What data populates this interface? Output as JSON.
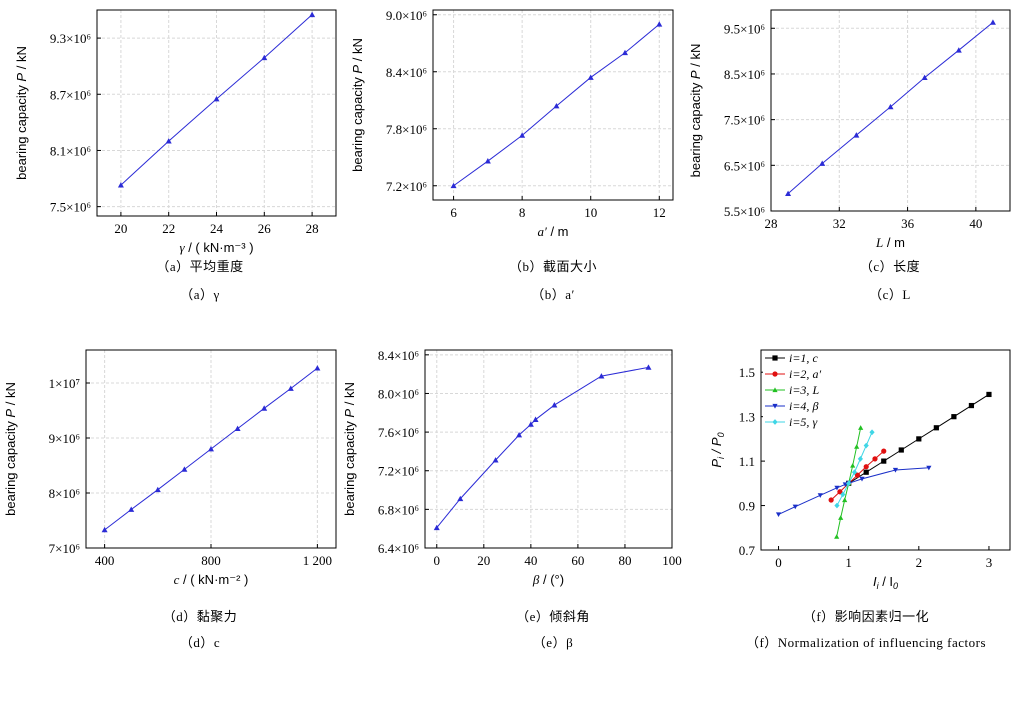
{
  "chart_data": [
    {
      "id": "a",
      "type": "line",
      "caption_cn": "（a）平均重度",
      "caption_en": "（a）γ",
      "xlabel": "γ / ( kN·m⁻³ )",
      "ylabel": "bearing capacity P / kN",
      "xlim": [
        19,
        29
      ],
      "ylim": [
        7.4,
        9.6
      ],
      "xticks": [
        20,
        22,
        24,
        26,
        28
      ],
      "xtick_labels": [
        "20",
        "22",
        "24",
        "26",
        "28"
      ],
      "yticks": [
        7.5,
        8.1,
        8.7,
        9.3
      ],
      "ytick_labels": [
        "7.5×10⁶",
        "8.1×10⁶",
        "8.7×10⁶",
        "9.3×10⁶"
      ],
      "grid": true,
      "color": "#2b2bd6",
      "marker": "triangle-up",
      "series": [
        {
          "x": [
            20,
            22,
            24,
            26,
            28
          ],
          "y": [
            7.73,
            8.2,
            8.65,
            9.09,
            9.55
          ]
        }
      ]
    },
    {
      "id": "b",
      "type": "line",
      "caption_cn": "（b）截面大小",
      "caption_en": "（b）a′",
      "xlabel": "a′ / m",
      "ylabel": "bearing capacity P / kN",
      "xlim": [
        5.4,
        12.4
      ],
      "ylim": [
        7.05,
        9.05
      ],
      "xticks": [
        6,
        8,
        10,
        12
      ],
      "xtick_labels": [
        "6",
        "8",
        "10",
        "12"
      ],
      "yticks": [
        7.2,
        7.8,
        8.4,
        9.0
      ],
      "ytick_labels": [
        "7.2×10⁶",
        "7.8×10⁶",
        "8.4×10⁶",
        "9.0×10⁶"
      ],
      "grid": true,
      "color": "#2b2bd6",
      "marker": "triangle-up",
      "series": [
        {
          "x": [
            6,
            7,
            8,
            9,
            10,
            11,
            12
          ],
          "y": [
            7.2,
            7.46,
            7.73,
            8.04,
            8.34,
            8.6,
            8.9
          ]
        }
      ]
    },
    {
      "id": "c",
      "type": "line",
      "caption_cn": "（c）长度",
      "caption_en": "（c）L",
      "xlabel": "L / m",
      "ylabel": "bearing capacity P / kN",
      "xlim": [
        28,
        42
      ],
      "ylim": [
        5.5,
        9.9
      ],
      "xticks": [
        28,
        32,
        36,
        40
      ],
      "xtick_labels": [
        "28",
        "32",
        "36",
        "40"
      ],
      "yticks": [
        5.5,
        6.5,
        7.5,
        8.5,
        9.5
      ],
      "ytick_labels": [
        "5.5×10⁶",
        "6.5×10⁶",
        "7.5×10⁶",
        "8.5×10⁶",
        "9.5×10⁶"
      ],
      "grid": true,
      "color": "#2b2bd6",
      "marker": "triangle-up",
      "series": [
        {
          "x": [
            29,
            31,
            33,
            35,
            37,
            39,
            41
          ],
          "y": [
            5.88,
            6.54,
            7.16,
            7.78,
            8.42,
            9.02,
            9.63
          ]
        }
      ]
    },
    {
      "id": "d",
      "type": "line",
      "caption_cn": "（d）黏聚力",
      "caption_en": "（d）c",
      "xlabel": "c / ( kN·m⁻² )",
      "ylabel": "bearing capacity P / kN",
      "xlim": [
        330,
        1270
      ],
      "ylim": [
        7.0,
        10.6
      ],
      "xticks": [
        400,
        800,
        1200
      ],
      "xtick_labels": [
        "400",
        "800",
        "1 200"
      ],
      "yticks": [
        7.0,
        8.0,
        9.0,
        10.0
      ],
      "ytick_labels": [
        "7×10⁶",
        "8×10⁶",
        "9×10⁶",
        "1×10⁷"
      ],
      "grid": true,
      "color": "#2b2bd6",
      "marker": "triangle-up",
      "series": [
        {
          "x": [
            400,
            500,
            600,
            700,
            800,
            900,
            1000,
            1100,
            1200
          ],
          "y": [
            7.33,
            7.7,
            8.06,
            8.43,
            8.8,
            9.17,
            9.54,
            9.9,
            10.27
          ]
        }
      ]
    },
    {
      "id": "e",
      "type": "line",
      "caption_cn": "（e）倾斜角",
      "caption_en": "（e）β",
      "xlabel": "β / (°)",
      "ylabel": "bearing capacity P / kN",
      "xlim": [
        -5,
        100
      ],
      "ylim": [
        6.4,
        8.45
      ],
      "xticks": [
        0,
        20,
        40,
        60,
        80,
        100
      ],
      "xtick_labels": [
        "0",
        "20",
        "40",
        "60",
        "80",
        "100"
      ],
      "yticks": [
        6.4,
        6.8,
        7.2,
        7.6,
        8.0,
        8.4
      ],
      "ytick_labels": [
        "6.4×10⁶",
        "6.8×10⁶",
        "7.2×10⁶",
        "7.6×10⁶",
        "8.0×10⁶",
        "8.4×10⁶"
      ],
      "grid": true,
      "color": "#2b2bd6",
      "marker": "triangle-up",
      "series": [
        {
          "x": [
            0,
            10,
            25,
            35,
            40,
            42,
            50,
            70,
            90
          ],
          "y": [
            6.61,
            6.91,
            7.31,
            7.57,
            7.68,
            7.73,
            7.88,
            8.18,
            8.27
          ]
        }
      ]
    },
    {
      "id": "f",
      "type": "line",
      "caption_cn": "（f）影响因素归一化",
      "caption_en": "（f）Normalization of influencing factors",
      "xlabel": "I i / I 0",
      "ylabel": "P i / P 0",
      "xlim": [
        -0.25,
        3.3
      ],
      "ylim": [
        0.7,
        1.6
      ],
      "xticks": [
        0,
        1,
        2,
        3
      ],
      "xtick_labels": [
        "0",
        "1",
        "2",
        "3"
      ],
      "yticks": [
        0.7,
        0.9,
        1.1,
        1.3,
        1.5
      ],
      "ytick_labels": [
        "0.7",
        "0.9",
        "1.1",
        "1.3",
        "1.5"
      ],
      "grid": false,
      "legend_position": "top-left",
      "series": [
        {
          "name": "i=1, c",
          "color": "#000000",
          "marker": "square",
          "x": [
            1.0,
            1.25,
            1.5,
            1.75,
            2.0,
            2.25,
            2.5,
            2.75,
            3.0
          ],
          "y": [
            1.0,
            1.05,
            1.1,
            1.15,
            1.2,
            1.25,
            1.3,
            1.35,
            1.4
          ]
        },
        {
          "name": "i=2, a′",
          "color": "#e01010",
          "marker": "circle",
          "x": [
            0.75,
            0.875,
            1.0,
            1.125,
            1.25,
            1.375,
            1.5
          ],
          "y": [
            0.925,
            0.962,
            1.0,
            1.037,
            1.075,
            1.11,
            1.145
          ]
        },
        {
          "name": "i=3, L",
          "color": "#22c022",
          "marker": "triangle-up",
          "x": [
            0.829,
            0.886,
            0.943,
            1.0,
            1.057,
            1.114,
            1.171
          ],
          "y": [
            0.76,
            0.845,
            0.925,
            1.0,
            1.08,
            1.165,
            1.25
          ]
        },
        {
          "name": "i=4, β",
          "color": "#1a2fc8",
          "marker": "triangle-down",
          "x": [
            0,
            0.238,
            0.595,
            0.833,
            0.952,
            1.0,
            1.19,
            1.667,
            2.143
          ],
          "y": [
            0.86,
            0.895,
            0.946,
            0.98,
            0.995,
            1.0,
            1.02,
            1.06,
            1.07
          ]
        },
        {
          "name": "i=5, γ",
          "color": "#3fd6e6",
          "marker": "diamond",
          "x": [
            0.833,
            0.917,
            1.0,
            1.083,
            1.167,
            1.25,
            1.333
          ],
          "y": [
            0.9,
            0.95,
            1.0,
            1.05,
            1.11,
            1.17,
            1.23
          ]
        }
      ]
    }
  ]
}
